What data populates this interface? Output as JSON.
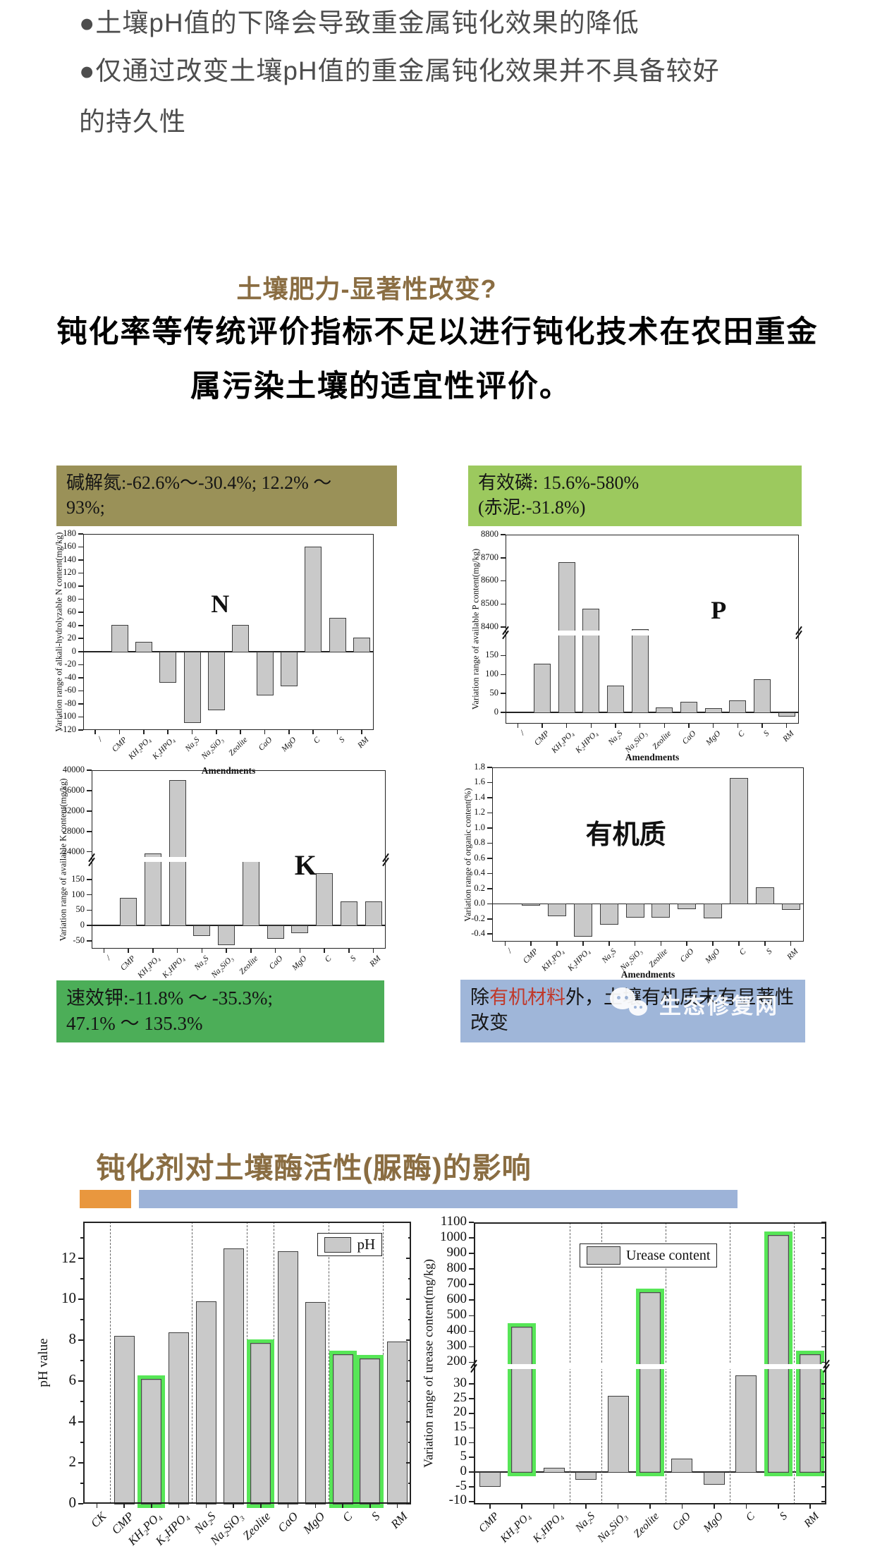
{
  "bullets": [
    "●土壤pH值的下降会导致重金属钝化效果的降低",
    "●仅通过改变土壤pH值的重金属钝化效果并不具备较好",
    "的持久性"
  ],
  "s1": {
    "title": "土壤肥力-显著性改变?",
    "line1": "钝化率等传统评价指标不足以进行钝化技术在农田重金",
    "line2": "属污染土壤的适宜性评价。"
  },
  "n_panel": {
    "l1": "碱解氮:-62.6%～-30.4%; 12.2% ～",
    "l2": "93%;"
  },
  "p_panel": {
    "l1": "有效磷: 15.6%-580%",
    "l2": "(赤泥:-31.8%)"
  },
  "k_panel": {
    "l1": "速效钾:-11.8% ～ -35.3%;",
    "l2": "47.1% ～ 135.3%"
  },
  "om_panel": {
    "pre": "除",
    "red": "有机材料",
    "post": "外，土壤有机质未有显著性改变"
  },
  "s2": {
    "title": "钝化剂对土壤酶活性(脲酶)的影响"
  },
  "wm": {
    "text": "生态修复网"
  },
  "colors": {
    "brown": "#8a6d42",
    "text_gray": "#4d4d4d",
    "olive": "#9a9158",
    "green_light": "#9cc95e",
    "green": "#4cae58",
    "blue": "#9fb6d9",
    "orange": "#e9973e",
    "blue_bar": "#9db3d8",
    "red": "#c0392b",
    "bar_fill": "#c9c9c9",
    "highlight": "#57e657"
  },
  "chart_data": [
    {
      "id": "n_chart",
      "type": "bar",
      "ylabel": "Variation range of alkali-hydrolyzable N content(mg/kg)",
      "xlabel": "Amendments",
      "inplot": "N",
      "categories": [
        "/",
        "CMP",
        "KH₂PO₄",
        "K₂HPO₄",
        "Na₂S",
        "Na₂SiO₃",
        "Zeolite",
        "CaO",
        "MgO",
        "C",
        "S",
        "RM"
      ],
      "values": [
        null,
        41,
        15,
        -47,
        -108,
        -89,
        41,
        -66,
        -52,
        161,
        52,
        21
      ],
      "sections": [
        {
          "min": -120,
          "max": 180,
          "frac": 1,
          "ticks": [
            [
              180,
              "180"
            ],
            [
              160,
              "160"
            ],
            [
              140,
              "140"
            ],
            [
              120,
              "120"
            ],
            [
              100,
              "100"
            ],
            [
              80,
              "80"
            ],
            [
              60,
              "60"
            ],
            [
              40,
              "40"
            ],
            [
              20,
              "20"
            ],
            [
              0,
              "0"
            ],
            [
              -20,
              "-20"
            ],
            [
              -40,
              "-40"
            ],
            [
              -60,
              "-60"
            ],
            [
              -80,
              "-80"
            ],
            [
              -100,
              "-100"
            ],
            [
              -120,
              "-120"
            ]
          ]
        }
      ]
    },
    {
      "id": "p_chart",
      "type": "bar",
      "ylabel": "Variation range of available P content(mg/kg)",
      "xlabel": "Amendments",
      "inplot": "P",
      "categories": [
        "/",
        "CMP",
        "KH₂PO₄",
        "K₂HPO₄",
        "Na₂S",
        "Na₂SiO₃",
        "Zeolite",
        "CaO",
        "MgO",
        "C",
        "S",
        "RM"
      ],
      "values": [
        null,
        128,
        8680,
        8480,
        70,
        8390,
        13,
        27,
        11,
        32,
        88,
        -10
      ],
      "sections": [
        {
          "min": 8375,
          "max": 8800,
          "frac": 0.52,
          "ticks": [
            [
              8800,
              "8800"
            ],
            [
              8700,
              "8700"
            ],
            [
              8600,
              "8600"
            ],
            [
              8500,
              "8500"
            ],
            [
              8400,
              "8400"
            ]
          ]
        },
        {
          "min": -30,
          "max": 210,
          "frac": 0.48,
          "ticks": [
            [
              150,
              "150"
            ],
            [
              100,
              "100"
            ],
            [
              50,
              "50"
            ],
            [
              0,
              "0"
            ]
          ]
        }
      ]
    },
    {
      "id": "k_chart",
      "type": "bar",
      "ylabel": "Variation range of available K content(mg/kg)",
      "xlabel": null,
      "inplot": "K",
      "categories": [
        "/",
        "CMP",
        "KH₂PO₄",
        "K₂HPO₄",
        "Na₂S",
        "Na₂SiO₃",
        "Zeolite",
        "CaO",
        "MgO",
        "C",
        "S",
        "RM"
      ],
      "values": [
        null,
        90,
        23700,
        38000,
        -32,
        -62,
        22550,
        -40,
        -22,
        170,
        78,
        78
      ],
      "sections": [
        {
          "min": 22500,
          "max": 40000,
          "frac": 0.5,
          "ticks": [
            [
              40000,
              "40000"
            ],
            [
              36000,
              "36000"
            ],
            [
              32000,
              "32000"
            ],
            [
              28000,
              "28000"
            ],
            [
              24000,
              "24000"
            ]
          ]
        },
        {
          "min": -75,
          "max": 215,
          "frac": 0.5,
          "ticks": [
            [
              150,
              "150"
            ],
            [
              100,
              "100"
            ],
            [
              50,
              "50"
            ],
            [
              0,
              "0"
            ],
            [
              -50,
              "-50"
            ]
          ]
        }
      ]
    },
    {
      "id": "org_chart",
      "type": "bar",
      "ylabel": "Variation range of organic content(%)",
      "xlabel": "Amendments",
      "inplot": "有机质",
      "categories": [
        "/",
        "CMP",
        "KH₂PO₄",
        "K₂HPO₄",
        "Na₂S",
        "Na₂SiO₃",
        "Zeolite",
        "CaO",
        "MgO",
        "C",
        "S",
        "RM"
      ],
      "values": [
        null,
        -0.02,
        -0.16,
        -0.43,
        -0.27,
        -0.17,
        -0.17,
        -0.06,
        -0.18,
        1.66,
        0.22,
        -0.07
      ],
      "sections": [
        {
          "min": -0.5,
          "max": 1.8,
          "frac": 1,
          "ticks": [
            [
              1.8,
              "1.8"
            ],
            [
              1.6,
              "1.6"
            ],
            [
              1.4,
              "1.4"
            ],
            [
              1.2,
              "1.2"
            ],
            [
              1.0,
              "1.0"
            ],
            [
              0.8,
              "0.8"
            ],
            [
              0.6,
              "0.6"
            ],
            [
              0.4,
              "0.4"
            ],
            [
              0.2,
              "0.2"
            ],
            [
              0.0,
              "0.0"
            ],
            [
              -0.2,
              "-0.2"
            ],
            [
              -0.4,
              "-0.4"
            ]
          ]
        }
      ]
    },
    {
      "id": "ph_chart",
      "type": "bar",
      "ylabel": "pH value",
      "xlabel": null,
      "legend": {
        "label": "pH"
      },
      "categories": [
        "CK",
        "CMP",
        "KH₂PO₄",
        "K₂HPO₄",
        "Na₂S",
        "Na₂SiO₃",
        "Zeolite",
        "CaO",
        "MgO",
        "C",
        "S",
        "RM"
      ],
      "values": [
        null,
        8.2,
        6.1,
        8.4,
        9.9,
        12.5,
        7.85,
        12.35,
        9.85,
        7.3,
        7.1,
        7.95
      ],
      "highlight": [
        2,
        6,
        9,
        10
      ],
      "dashed_after": [
        0,
        3,
        5,
        6,
        8,
        10
      ],
      "minor_ticks": [
        13,
        11,
        9,
        7,
        5,
        3,
        1
      ],
      "sections": [
        {
          "min": 0,
          "max": 13.8,
          "frac": 1,
          "ticks": [
            [
              12,
              "12"
            ],
            [
              10,
              "10"
            ],
            [
              8,
              "8"
            ],
            [
              6,
              "6"
            ],
            [
              4,
              "4"
            ],
            [
              2,
              "2"
            ],
            [
              0,
              "0"
            ]
          ]
        }
      ]
    },
    {
      "id": "ur_chart",
      "type": "bar",
      "ylabel": "Variation range of urease content(mg/kg)",
      "xlabel": null,
      "legend": {
        "label": "Urease content"
      },
      "categories": [
        "CMP",
        "KH₂PO₄",
        "K₂HPO₄",
        "Na₂S",
        "Na₂SiO₃",
        "Zeolite",
        "CaO",
        "MgO",
        "C",
        "S",
        "RM"
      ],
      "values": [
        -4.8,
        430,
        1.5,
        -2.3,
        26,
        650,
        4.7,
        -4,
        33,
        1020,
        250
      ],
      "highlight": [
        1,
        5,
        9,
        10
      ],
      "dashed_after": [
        2,
        3,
        5,
        7,
        9
      ],
      "sections": [
        {
          "min": 175,
          "max": 1100,
          "frac": 0.51,
          "ticks": [
            [
              1100,
              "1100"
            ],
            [
              1000,
              "1000"
            ],
            [
              900,
              "900"
            ],
            [
              800,
              "800"
            ],
            [
              700,
              "700"
            ],
            [
              600,
              "600"
            ],
            [
              500,
              "500"
            ],
            [
              400,
              "400"
            ],
            [
              300,
              "300"
            ],
            [
              200,
              "200"
            ]
          ]
        },
        {
          "min": -11,
          "max": 36,
          "frac": 0.49,
          "ticks": [
            [
              30,
              "30"
            ],
            [
              25,
              "25"
            ],
            [
              20,
              "20"
            ],
            [
              15,
              "15"
            ],
            [
              10,
              "10"
            ],
            [
              5,
              "5"
            ],
            [
              0,
              "0"
            ],
            [
              -5,
              "-5"
            ],
            [
              -10,
              "-10"
            ]
          ]
        }
      ]
    }
  ]
}
